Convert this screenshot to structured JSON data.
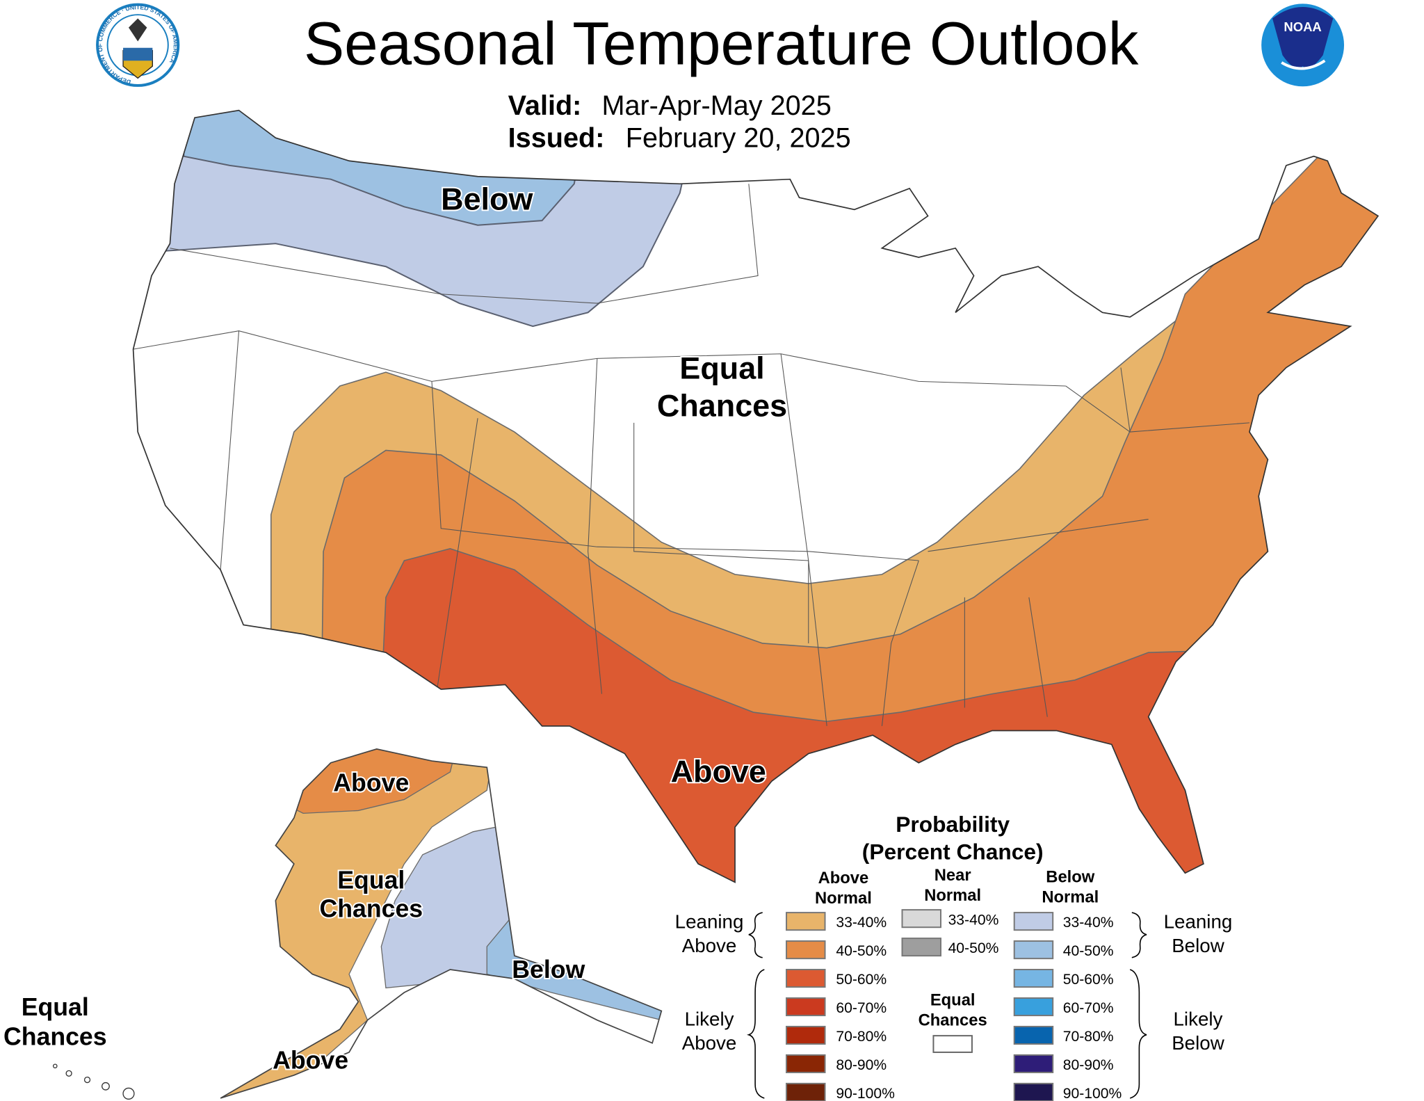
{
  "header": {
    "title": "Seasonal Temperature Outlook",
    "valid_label": "Valid:",
    "valid_value": "Mar-Apr-May 2025",
    "issued_label": "Issued:",
    "issued_value": "February 20, 2025",
    "left_logo": "Department of Commerce seal",
    "left_logo_text": "DEPARTMENT OF COMMERCE · UNITED STATES OF AMERICA",
    "right_logo": "NOAA logo",
    "right_logo_text": "NOAA"
  },
  "map_labels": {
    "conus_below": "Below",
    "conus_equal_1": "Equal",
    "conus_equal_2": "Chances",
    "conus_above": "Above",
    "ak_above_north": "Above",
    "ak_equal_1": "Equal",
    "ak_equal_2": "Chances",
    "ak_below": "Below",
    "ak_above_south": "Above",
    "hi_equal_1": "Equal",
    "hi_equal_2": "Chances"
  },
  "legend": {
    "title_1": "Probability",
    "title_2": "(Percent Chance)",
    "col_above_1": "Above",
    "col_above_2": "Normal",
    "col_near_1": "Near",
    "col_near_2": "Normal",
    "col_below_1": "Below",
    "col_below_2": "Normal",
    "leaning_above_1": "Leaning",
    "leaning_above_2": "Above",
    "likely_above_1": "Likely",
    "likely_above_2": "Above",
    "leaning_below_1": "Leaning",
    "leaning_below_2": "Below",
    "likely_below_1": "Likely",
    "likely_below_2": "Below",
    "equal_1": "Equal",
    "equal_2": "Chances",
    "above": [
      {
        "range": "33-40%",
        "color": "#e8b46a"
      },
      {
        "range": "40-50%",
        "color": "#e58c47"
      },
      {
        "range": "50-60%",
        "color": "#dc5a32"
      },
      {
        "range": "60-70%",
        "color": "#cb3a1f"
      },
      {
        "range": "70-80%",
        "color": "#b02a0c"
      },
      {
        "range": "80-90%",
        "color": "#8a2605"
      },
      {
        "range": "90-100%",
        "color": "#6e2208"
      }
    ],
    "near": [
      {
        "range": "33-40%",
        "color": "#d9d9d9"
      },
      {
        "range": "40-50%",
        "color": "#9e9e9e"
      }
    ],
    "below": [
      {
        "range": "33-40%",
        "color": "#c0cce6"
      },
      {
        "range": "40-50%",
        "color": "#9dc1e2"
      },
      {
        "range": "50-60%",
        "color": "#76b5e3"
      },
      {
        "range": "60-70%",
        "color": "#38a0dd"
      },
      {
        "range": "70-80%",
        "color": "#0864ae"
      },
      {
        "range": "80-90%",
        "color": "#2e1d78"
      },
      {
        "range": "90-100%",
        "color": "#1e1650"
      }
    ],
    "equal_color": "#ffffff"
  }
}
